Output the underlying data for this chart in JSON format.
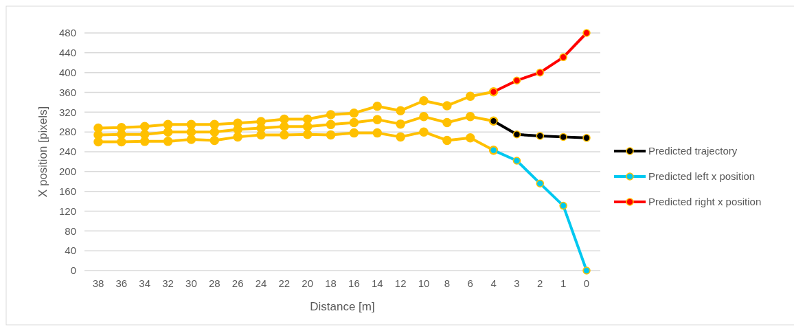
{
  "chart_data": {
    "type": "line",
    "xlabel": "Distance [m]",
    "ylabel": "X position [pixels]",
    "categories": [
      "38",
      "36",
      "34",
      "32",
      "30",
      "28",
      "26",
      "24",
      "22",
      "20",
      "18",
      "16",
      "14",
      "12",
      "10",
      "8",
      "6",
      "4",
      "3",
      "2",
      "1",
      "0"
    ],
    "ylim": [
      0,
      480
    ],
    "yticks": [
      0,
      40,
      80,
      120,
      160,
      200,
      240,
      280,
      320,
      360,
      400,
      440,
      480
    ],
    "grid": "y",
    "legend": "right",
    "marker": "circle",
    "line_style": "solid",
    "series": [
      {
        "color": "#ffc000",
        "values": [
          288,
          289,
          291,
          295,
          295,
          295,
          298,
          301,
          306,
          306,
          315,
          318,
          332,
          323,
          343,
          333,
          352,
          361,
          null,
          null,
          null,
          null
        ]
      },
      {
        "color": "#ffc000",
        "values": [
          274,
          275,
          275,
          280,
          280,
          280,
          285,
          288,
          291,
          291,
          295,
          299,
          305,
          296,
          311,
          299,
          311,
          302,
          null,
          null,
          null,
          null
        ]
      },
      {
        "color": "#ffc000",
        "values": [
          260,
          260,
          261,
          261,
          265,
          263,
          270,
          274,
          274,
          275,
          274,
          278,
          278,
          270,
          280,
          263,
          268,
          243,
          null,
          null,
          null,
          null
        ]
      },
      {
        "name": "Predicted trajectory",
        "color": "#000000",
        "values": [
          null,
          null,
          null,
          null,
          null,
          null,
          null,
          null,
          null,
          null,
          null,
          null,
          null,
          null,
          null,
          null,
          null,
          302,
          275,
          272,
          270,
          268
        ]
      },
      {
        "name": "Predicted left x position",
        "color": "#00c8f0",
        "values": [
          null,
          null,
          null,
          null,
          null,
          null,
          null,
          null,
          null,
          null,
          null,
          null,
          null,
          null,
          null,
          null,
          null,
          243,
          222,
          176,
          131,
          0
        ]
      },
      {
        "name": "Predicted right x position",
        "color": "#ff0000",
        "values": [
          null,
          null,
          null,
          null,
          null,
          null,
          null,
          null,
          null,
          null,
          null,
          null,
          null,
          null,
          null,
          null,
          null,
          361,
          384,
          400,
          431,
          480
        ]
      }
    ]
  }
}
